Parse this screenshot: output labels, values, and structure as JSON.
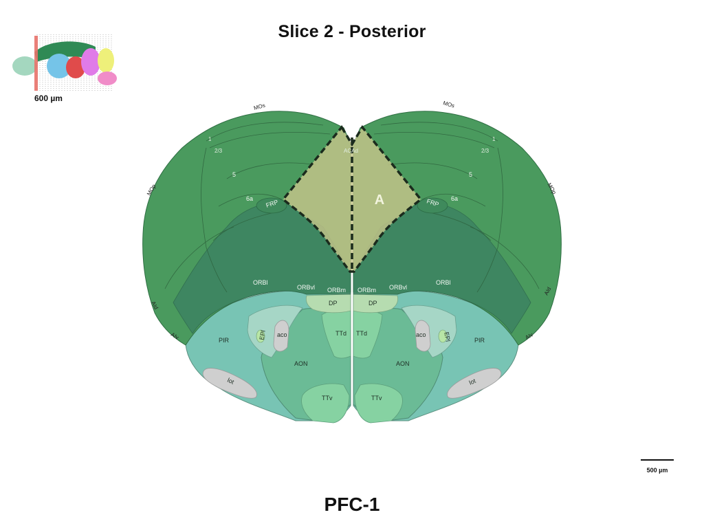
{
  "slide": {
    "title": "Slice 2 - Posterior",
    "footer_title": "PFC-1"
  },
  "thumbnail": {
    "label": "600 µm"
  },
  "scale_bar": {
    "label": "500 µm"
  },
  "atlas": {
    "roi_label": "A",
    "colors": {
      "cortex": "#4a9a5e",
      "orbital": "#3e8562",
      "olfactory_light": "#7ec8b8",
      "olfactory_mid": "#6fbf9a",
      "dp": "#b6dcb0",
      "ttd": "#86d2a2",
      "fiber": "#cfcfcf",
      "roi_fill": "#c6c48a",
      "roi_stroke": "#1b2b1d"
    },
    "labels": {
      "mos_left": "MOs",
      "mos_right": "MOs",
      "mop_left": "MOp",
      "mop_right": "MOp",
      "layer1_left": "1",
      "layer1_right": "1",
      "layer23_left": "2/3",
      "layer23_right": "2/3",
      "layer5_left": "5",
      "layer5_right": "5",
      "layer6a_left": "6a",
      "layer6a_right": "6a",
      "frp_left": "FRP",
      "frp_right": "FRP",
      "acad": "ACAd",
      "orbl_left": "ORBl",
      "orbl_right": "ORBl",
      "orbvl_left": "ORBvl",
      "orbvl_right": "ORBvl",
      "orbm_left": "ORBm",
      "orbm_right": "ORBm",
      "dp_left": "DP",
      "dp_right": "DP",
      "aid_left": "AId",
      "aid_right": "AId",
      "aiv_left": "AIv",
      "aiv_right": "AIv",
      "pir_left": "PIR",
      "pir_right": "PIR",
      "epl_left": "EPl",
      "epl_right": "EPl",
      "aco_left": "aco",
      "aco_right": "aco",
      "ttd_left": "TTd",
      "ttd_right": "TTd",
      "aon_left": "AON",
      "aon_right": "AON",
      "lot_left": "lot",
      "lot_right": "lot",
      "ttv_left": "TTv",
      "ttv_right": "TTv"
    }
  }
}
